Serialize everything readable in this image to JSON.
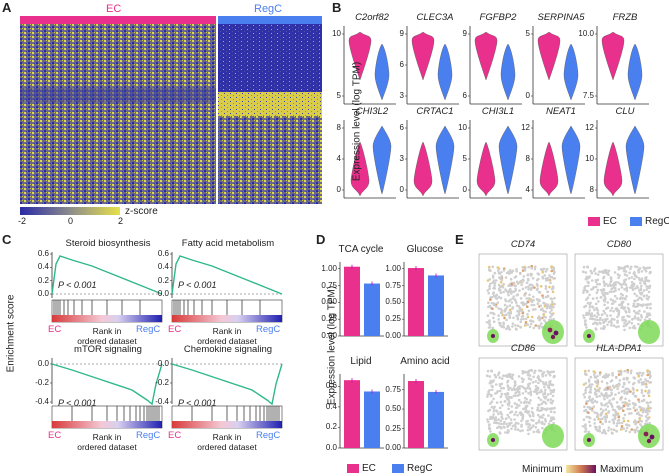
{
  "panels": {
    "A": {
      "letter": "A",
      "groups": [
        "EC",
        "RegC"
      ],
      "colorbar": {
        "ticks": [
          "-2",
          "0",
          "2"
        ],
        "label": "z-score"
      }
    },
    "B": {
      "letter": "B",
      "ylabel": "Expression level (log TPM)",
      "genes": [
        "C2orf82",
        "CLEC3A",
        "FGFBP2",
        "SERPINA5",
        "FRZB",
        "CHI3L2",
        "CRTAC1",
        "CHI3L1",
        "NEAT1",
        "CLU"
      ],
      "row1_yticks": [
        [
          "5",
          "10"
        ],
        [
          "3",
          "6",
          "9"
        ],
        [
          "6",
          "9"
        ],
        [
          "0",
          "5"
        ],
        [
          "7.5",
          "10.0"
        ]
      ],
      "row2_yticks": [
        [
          "0",
          "4",
          "8"
        ],
        [
          "0",
          "3",
          "6"
        ],
        [
          "0",
          "5",
          "10"
        ],
        [
          "4",
          "8",
          "12"
        ],
        [
          "8",
          "10",
          "12"
        ]
      ],
      "legend": [
        "EC",
        "RegC"
      ]
    },
    "C": {
      "letter": "C",
      "ylabel": "Enrichment score",
      "plots": [
        {
          "title": "Steroid biosynthesis",
          "pval": "P < 0.001",
          "yticks": [
            "0.0",
            "0.2",
            "0.4",
            "0.6"
          ]
        },
        {
          "title": "Fatty acid metabolism",
          "pval": "P < 0.001",
          "yticks": [
            "0.0",
            "0.2",
            "0.4",
            "0.6"
          ]
        },
        {
          "title": "mTOR signaling",
          "pval": "P < 0.001",
          "yticks": [
            "-0.4",
            "-0.2",
            "0.0"
          ]
        },
        {
          "title": "Chemokine signaling",
          "pval": "P < 0.001",
          "yticks": [
            "-0.4",
            "-0.2",
            "0.0"
          ]
        }
      ],
      "xlabel_left": "EC",
      "xlabel_right": "RegC",
      "xlabel_mid": [
        "Rank in",
        "ordered dataset"
      ]
    },
    "D": {
      "letter": "D",
      "ylabel": "Expression level (log TPM)",
      "legend": [
        "EC",
        "RegC"
      ]
    },
    "E": {
      "letter": "E",
      "genes": [
        "CD74",
        "CD80",
        "CD86",
        "HLA-DPA1"
      ],
      "scale": [
        "Minimum",
        "Maximum"
      ]
    }
  },
  "chart_data": [
    {
      "type": "bar",
      "title": "TCA cycle",
      "categories": [
        "EC",
        "RegC"
      ],
      "values": [
        1.03,
        0.78
      ],
      "yticks": [
        "0.00",
        "0.25",
        "0.50",
        "0.75",
        "1.00"
      ],
      "ylim": [
        0,
        1.1
      ]
    },
    {
      "type": "bar",
      "title": "Glucose",
      "categories": [
        "EC",
        "RegC"
      ],
      "values": [
        1.01,
        0.9
      ],
      "yticks": [
        "0.00",
        "0.25",
        "0.50",
        "0.75",
        "1.00"
      ],
      "ylim": [
        0,
        1.1
      ]
    },
    {
      "type": "bar",
      "title": "Lipid",
      "categories": [
        "EC",
        "RegC"
      ],
      "values": [
        0.66,
        0.55
      ],
      "yticks": [
        "0.0",
        "0.2",
        "0.4",
        "0.6"
      ],
      "ylim": [
        0,
        0.72
      ]
    },
    {
      "type": "bar",
      "title": "Amino acid",
      "categories": [
        "EC",
        "RegC"
      ],
      "values": [
        0.86,
        0.72
      ],
      "yticks": [
        "0.00",
        "0.25",
        "0.50",
        "0.75"
      ],
      "ylim": [
        0,
        0.95
      ]
    }
  ],
  "colors": {
    "ec": "#e8308c",
    "regc": "#4a7ff0",
    "heatLow": "#2a2aa8",
    "heatHigh": "#e8e04a",
    "gsea": "#2fb88a",
    "tsneGrey": "#cfcfcf",
    "highlight": "#7ed957"
  }
}
